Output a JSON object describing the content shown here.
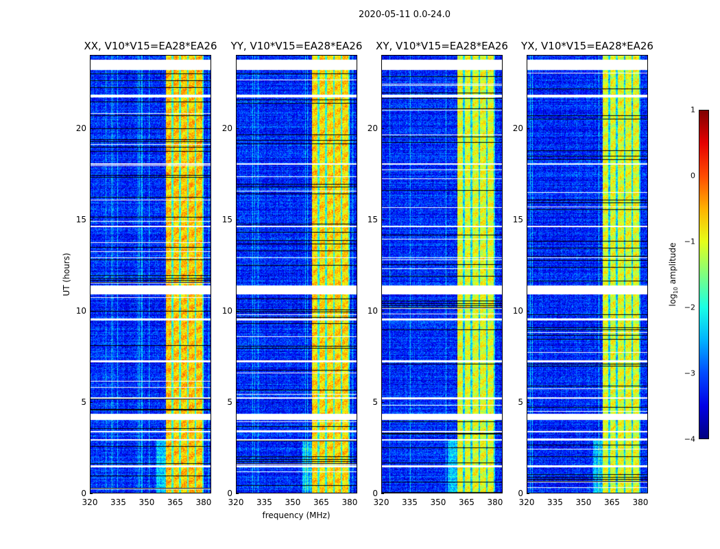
{
  "suptitle": "2020-05-11 0.0-24.0",
  "chart_data": {
    "type": "heatmap",
    "title": "2020-05-11 0.0-24.0",
    "xlabel": "frequency (MHz)",
    "ylabel": "UT (hours)",
    "xlim": [
      320,
      384
    ],
    "ylim": [
      0,
      24
    ],
    "xticks": [
      "320",
      "335",
      "350",
      "365",
      "380"
    ],
    "yticks": [
      "0",
      "5",
      "10",
      "15",
      "20"
    ],
    "panels": [
      {
        "title": "XX, V10*V15=EA28*EA26",
        "band_level": -0.6
      },
      {
        "title": "YY, V10*V15=EA28*EA26",
        "band_level": -0.7
      },
      {
        "title": "XY, V10*V15=EA28*EA26",
        "band_level": -1.0
      },
      {
        "title": "YX, V10*V15=EA28*EA26",
        "band_level": -1.0
      }
    ],
    "background_level": -3.2,
    "band_mhz": [
      360,
      380
    ],
    "band_stripes_mhz": [
      363.5,
      367.5,
      371.5,
      375.5,
      379.5
    ],
    "flagged_ut_ranges": [
      [
        23.2,
        23.75
      ],
      [
        10.9,
        11.4
      ],
      [
        4.05,
        4.38
      ],
      [
        21.7,
        21.85
      ],
      [
        18.0,
        18.1
      ],
      [
        9.5,
        9.6
      ],
      [
        7.2,
        7.3
      ],
      [
        3.35,
        3.45
      ],
      [
        2.9,
        3.0
      ],
      [
        1.45,
        1.55
      ],
      [
        5.2,
        5.27
      ],
      [
        12.9,
        12.95
      ],
      [
        14.6,
        14.65
      ]
    ],
    "colorbar": {
      "label": "log10 amplitude",
      "range": [
        -4,
        1
      ],
      "ticks": [
        "1",
        "0",
        "−1",
        "−2",
        "−3",
        "−4"
      ],
      "colormap": "jet"
    }
  }
}
